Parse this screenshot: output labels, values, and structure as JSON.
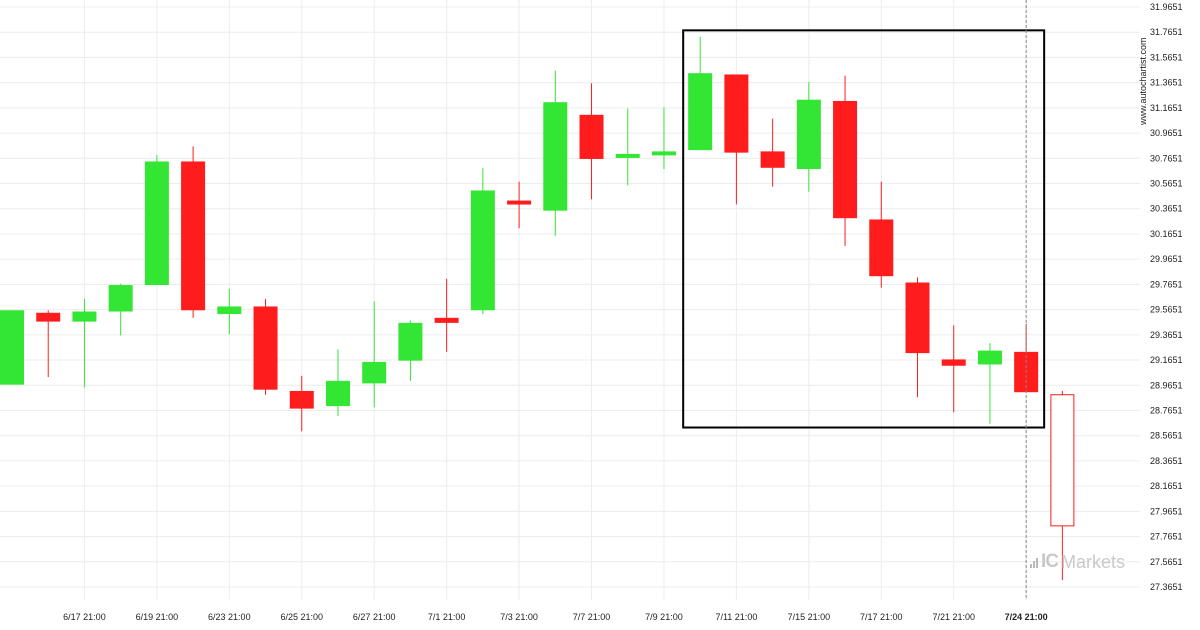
{
  "chart_data": {
    "type": "candlestick",
    "title": "",
    "xlabel": "",
    "ylabel": "",
    "ylim": [
      27.26,
      31.99
    ],
    "y_ticks": [
      "31.9651",
      "31.7651",
      "31.5651",
      "31.3651",
      "31.1651",
      "30.9651",
      "30.7651",
      "30.5651",
      "30.3651",
      "30.1651",
      "29.9651",
      "29.7651",
      "29.5651",
      "29.3651",
      "29.1651",
      "28.9651",
      "28.7651",
      "28.5651",
      "28.3651",
      "28.1651",
      "27.9651",
      "27.7651",
      "27.5651",
      "27.3651"
    ],
    "x_tick_labels": [
      {
        "label": "6/17 21:00",
        "index": 2
      },
      {
        "label": "6/19 21:00",
        "index": 4
      },
      {
        "label": "6/23 21:00",
        "index": 6
      },
      {
        "label": "6/25 21:00",
        "index": 8
      },
      {
        "label": "6/27 21:00",
        "index": 10
      },
      {
        "label": "7/1 21:00",
        "index": 12
      },
      {
        "label": "7/3 21:00",
        "index": 14
      },
      {
        "label": "7/7 21:00",
        "index": 16
      },
      {
        "label": "7/9 21:00",
        "index": 18
      },
      {
        "label": "7/11 21:00",
        "index": 20
      },
      {
        "label": "7/15 21:00",
        "index": 22
      },
      {
        "label": "7/17 21:00",
        "index": 24
      },
      {
        "label": "7/21 21:00",
        "index": 26
      },
      {
        "label": "7/24 21:00",
        "index": 28,
        "bold": true
      }
    ],
    "candles": [
      {
        "o": 28.97,
        "h": 29.56,
        "l": 28.97,
        "c": 29.56
      },
      {
        "o": 29.54,
        "h": 29.56,
        "l": 29.03,
        "c": 29.47
      },
      {
        "o": 29.47,
        "h": 29.65,
        "l": 28.95,
        "c": 29.55
      },
      {
        "o": 29.55,
        "h": 29.77,
        "l": 29.36,
        "c": 29.76
      },
      {
        "o": 29.76,
        "h": 30.79,
        "l": 29.76,
        "c": 30.74
      },
      {
        "o": 30.74,
        "h": 30.86,
        "l": 29.5,
        "c": 29.56
      },
      {
        "o": 29.53,
        "h": 29.73,
        "l": 29.37,
        "c": 29.59
      },
      {
        "o": 29.59,
        "h": 29.65,
        "l": 28.89,
        "c": 28.93
      },
      {
        "o": 28.92,
        "h": 29.04,
        "l": 28.6,
        "c": 28.78
      },
      {
        "o": 28.8,
        "h": 29.25,
        "l": 28.72,
        "c": 29.0
      },
      {
        "o": 28.98,
        "h": 29.63,
        "l": 28.79,
        "c": 29.15
      },
      {
        "o": 29.16,
        "h": 29.48,
        "l": 29.0,
        "c": 29.46
      },
      {
        "o": 29.5,
        "h": 29.81,
        "l": 29.23,
        "c": 29.46
      },
      {
        "o": 29.56,
        "h": 30.69,
        "l": 29.53,
        "c": 30.51
      },
      {
        "o": 30.43,
        "h": 30.58,
        "l": 30.21,
        "c": 30.4
      },
      {
        "o": 30.35,
        "h": 31.46,
        "l": 30.15,
        "c": 31.21
      },
      {
        "o": 31.11,
        "h": 31.36,
        "l": 30.44,
        "c": 30.76
      },
      {
        "o": 30.77,
        "h": 31.16,
        "l": 30.55,
        "c": 30.8
      },
      {
        "o": 30.79,
        "h": 31.17,
        "l": 30.68,
        "c": 30.82
      },
      {
        "o": 30.83,
        "h": 31.73,
        "l": 30.83,
        "c": 31.44
      },
      {
        "o": 31.43,
        "h": 31.43,
        "l": 30.4,
        "c": 30.81
      },
      {
        "o": 30.82,
        "h": 31.08,
        "l": 30.54,
        "c": 30.69
      },
      {
        "o": 30.68,
        "h": 31.37,
        "l": 30.5,
        "c": 31.23
      },
      {
        "o": 31.22,
        "h": 31.42,
        "l": 30.07,
        "c": 30.29
      },
      {
        "o": 30.28,
        "h": 30.58,
        "l": 29.74,
        "c": 29.83
      },
      {
        "o": 29.78,
        "h": 29.82,
        "l": 28.87,
        "c": 29.22
      },
      {
        "o": 29.17,
        "h": 29.44,
        "l": 28.75,
        "c": 29.12
      },
      {
        "o": 29.13,
        "h": 29.3,
        "l": 28.66,
        "c": 29.24
      },
      {
        "o": 29.23,
        "h": 29.45,
        "l": 28.92,
        "c": 28.91
      },
      {
        "o": 28.89,
        "h": 28.92,
        "l": 27.42,
        "c": 27.85,
        "hollow": true
      }
    ],
    "highlight_box": {
      "start_index": 19,
      "end_index": 28,
      "top": 31.78,
      "bottom": 28.63
    },
    "current_marker_index": 28,
    "colors": {
      "up": "#33e633",
      "down": "#ff1c1c",
      "forecast": "#ff1c1c",
      "box": "#000000",
      "grid": "#ececec",
      "marker": "#888888"
    }
  },
  "watermark": "www.autochartist.com",
  "brand": {
    "ic": "IC",
    "name": "Markets"
  }
}
